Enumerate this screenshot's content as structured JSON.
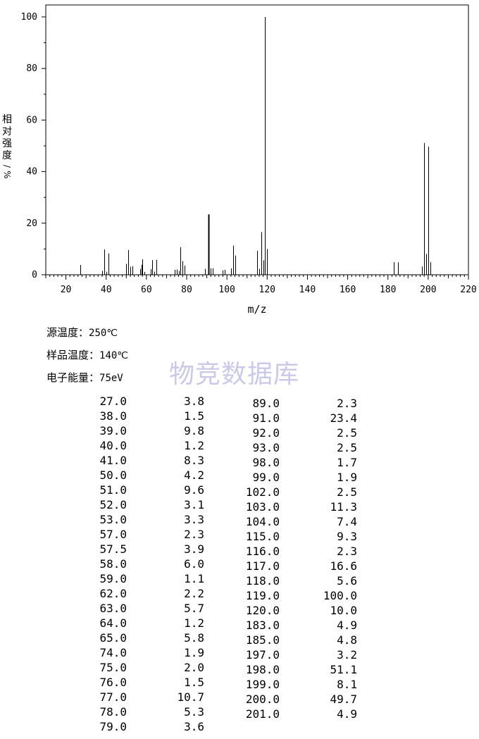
{
  "chart_data": {
    "type": "bar",
    "xlabel": "m/z",
    "ylabel": "相对强度/%",
    "xlim": [
      10,
      220
    ],
    "ylim": [
      0,
      105
    ],
    "x_ticks": [
      "20",
      "40",
      "60",
      "80",
      "100",
      "120",
      "140",
      "160",
      "180",
      "200",
      "220"
    ],
    "y_ticks": [
      "0",
      "20",
      "40",
      "60",
      "80",
      "100"
    ],
    "peaks": [
      {
        "mz": 27.0,
        "intensity": 3.8
      },
      {
        "mz": 38.0,
        "intensity": 1.5
      },
      {
        "mz": 39.0,
        "intensity": 9.8
      },
      {
        "mz": 40.0,
        "intensity": 1.2
      },
      {
        "mz": 41.0,
        "intensity": 8.3
      },
      {
        "mz": 50.0,
        "intensity": 4.2
      },
      {
        "mz": 51.0,
        "intensity": 9.6
      },
      {
        "mz": 52.0,
        "intensity": 3.1
      },
      {
        "mz": 53.0,
        "intensity": 3.3
      },
      {
        "mz": 57.0,
        "intensity": 2.3
      },
      {
        "mz": 57.5,
        "intensity": 3.9
      },
      {
        "mz": 58.0,
        "intensity": 6.0
      },
      {
        "mz": 59.0,
        "intensity": 1.1
      },
      {
        "mz": 62.0,
        "intensity": 2.2
      },
      {
        "mz": 63.0,
        "intensity": 5.7
      },
      {
        "mz": 64.0,
        "intensity": 1.2
      },
      {
        "mz": 65.0,
        "intensity": 5.8
      },
      {
        "mz": 74.0,
        "intensity": 1.9
      },
      {
        "mz": 75.0,
        "intensity": 2.0
      },
      {
        "mz": 76.0,
        "intensity": 1.5
      },
      {
        "mz": 77.0,
        "intensity": 10.7
      },
      {
        "mz": 78.0,
        "intensity": 5.3
      },
      {
        "mz": 79.0,
        "intensity": 3.6
      },
      {
        "mz": 89.0,
        "intensity": 2.3
      },
      {
        "mz": 91.0,
        "intensity": 23.4
      },
      {
        "mz": 92.0,
        "intensity": 2.5
      },
      {
        "mz": 93.0,
        "intensity": 2.5
      },
      {
        "mz": 98.0,
        "intensity": 1.7
      },
      {
        "mz": 99.0,
        "intensity": 1.9
      },
      {
        "mz": 102.0,
        "intensity": 2.5
      },
      {
        "mz": 103.0,
        "intensity": 11.3
      },
      {
        "mz": 104.0,
        "intensity": 7.4
      },
      {
        "mz": 115.0,
        "intensity": 9.3
      },
      {
        "mz": 116.0,
        "intensity": 2.3
      },
      {
        "mz": 117.0,
        "intensity": 16.6
      },
      {
        "mz": 118.0,
        "intensity": 5.6
      },
      {
        "mz": 119.0,
        "intensity": 100.0
      },
      {
        "mz": 120.0,
        "intensity": 10.0
      },
      {
        "mz": 183.0,
        "intensity": 4.9
      },
      {
        "mz": 185.0,
        "intensity": 4.8
      },
      {
        "mz": 197.0,
        "intensity": 3.2
      },
      {
        "mz": 198.0,
        "intensity": 51.1
      },
      {
        "mz": 199.0,
        "intensity": 8.1
      },
      {
        "mz": 200.0,
        "intensity": 49.7
      },
      {
        "mz": 201.0,
        "intensity": 4.9
      }
    ]
  },
  "info": {
    "source_temp_label": "源温度：",
    "source_temp_value": "250℃",
    "sample_temp_label": "样品温度：",
    "sample_temp_value": "140℃",
    "energy_label": "电子能量：",
    "energy_value": "75eV"
  },
  "watermark": "物竞数据库",
  "table_left": [
    [
      "27.0",
      "3.8"
    ],
    [
      "38.0",
      "1.5"
    ],
    [
      "39.0",
      "9.8"
    ],
    [
      "40.0",
      "1.2"
    ],
    [
      "41.0",
      "8.3"
    ],
    [
      "50.0",
      "4.2"
    ],
    [
      "51.0",
      "9.6"
    ],
    [
      "52.0",
      "3.1"
    ],
    [
      "53.0",
      "3.3"
    ],
    [
      "57.0",
      "2.3"
    ],
    [
      "57.5",
      "3.9"
    ],
    [
      "58.0",
      "6.0"
    ],
    [
      "59.0",
      "1.1"
    ],
    [
      "62.0",
      "2.2"
    ],
    [
      "63.0",
      "5.7"
    ],
    [
      "64.0",
      "1.2"
    ],
    [
      "65.0",
      "5.8"
    ],
    [
      "74.0",
      "1.9"
    ],
    [
      "75.0",
      "2.0"
    ],
    [
      "76.0",
      "1.5"
    ],
    [
      "77.0",
      "10.7"
    ],
    [
      "78.0",
      "5.3"
    ],
    [
      "79.0",
      "3.6"
    ]
  ],
  "table_right": [
    [
      "89.0",
      "2.3"
    ],
    [
      "91.0",
      "23.4"
    ],
    [
      "92.0",
      "2.5"
    ],
    [
      "93.0",
      "2.5"
    ],
    [
      "98.0",
      "1.7"
    ],
    [
      "99.0",
      "1.9"
    ],
    [
      "102.0",
      "2.5"
    ],
    [
      "103.0",
      "11.3"
    ],
    [
      "104.0",
      "7.4"
    ],
    [
      "115.0",
      "9.3"
    ],
    [
      "116.0",
      "2.3"
    ],
    [
      "117.0",
      "16.6"
    ],
    [
      "118.0",
      "5.6"
    ],
    [
      "119.0",
      "100.0"
    ],
    [
      "120.0",
      "10.0"
    ],
    [
      "183.0",
      "4.9"
    ],
    [
      "185.0",
      "4.8"
    ],
    [
      "197.0",
      "3.2"
    ],
    [
      "198.0",
      "51.1"
    ],
    [
      "199.0",
      "8.1"
    ],
    [
      "200.0",
      "49.7"
    ],
    [
      "201.0",
      "4.9"
    ]
  ]
}
